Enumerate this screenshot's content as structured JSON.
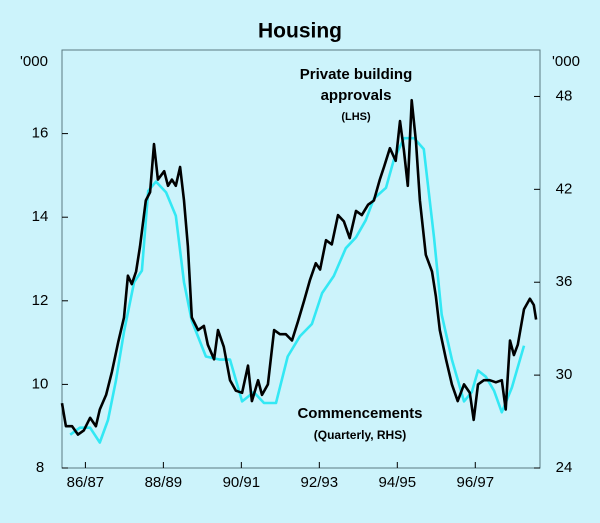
{
  "chart_data": {
    "type": "line",
    "title": "Housing",
    "y_label": "'000",
    "y2_label": "'000",
    "annotations": [
      "Private building",
      "approvals",
      "(LHS)",
      "Commencements",
      "(Quarterly, RHS)"
    ],
    "xlim": [
      1986.4,
      1998.66
    ],
    "xticks": [
      {
        "value": 1987,
        "label": "86/87"
      },
      {
        "value": 1989,
        "label": "88/89"
      },
      {
        "value": 1991,
        "label": "90/91"
      },
      {
        "value": 1993,
        "label": "92/93"
      },
      {
        "value": 1995,
        "label": "94/95"
      },
      {
        "value": 1997,
        "label": "96/97"
      }
    ],
    "ylim": [
      8,
      18
    ],
    "yticks": [
      8,
      10,
      12,
      14,
      16
    ],
    "y2lim": [
      24,
      51
    ],
    "y2ticks": [
      24,
      30,
      36,
      42,
      48
    ],
    "series": [
      {
        "name": "Private building approvals",
        "color": "#000000",
        "x": [
          1986.4,
          1986.5,
          1986.66,
          1986.81,
          1986.96,
          1987.12,
          1987.27,
          1987.37,
          1987.53,
          1987.68,
          1987.84,
          1987.99,
          1988.09,
          1988.19,
          1988.3,
          1988.4,
          1988.55,
          1988.66,
          1988.76,
          1988.86,
          1989.02,
          1989.12,
          1989.22,
          1989.32,
          1989.43,
          1989.53,
          1989.63,
          1989.73,
          1989.89,
          1990.04,
          1990.14,
          1990.3,
          1990.4,
          1990.55,
          1990.71,
          1990.86,
          1991.02,
          1991.17,
          1991.27,
          1991.43,
          1991.53,
          1991.68,
          1991.84,
          1991.99,
          1992.14,
          1992.3,
          1992.45,
          1992.61,
          1992.76,
          1992.91,
          1993.02,
          1993.17,
          1993.32,
          1993.48,
          1993.63,
          1993.78,
          1993.94,
          1994.09,
          1994.25,
          1994.4,
          1994.55,
          1994.66,
          1994.81,
          1994.96,
          1995.07,
          1995.17,
          1995.27,
          1995.37,
          1995.48,
          1995.58,
          1995.73,
          1995.89,
          1995.99,
          1996.09,
          1996.25,
          1996.4,
          1996.55,
          1996.71,
          1996.86,
          1996.96,
          1997.07,
          1997.22,
          1997.37,
          1997.53,
          1997.68,
          1997.78,
          1997.89,
          1997.99,
          1998.09,
          1998.25,
          1998.4,
          1998.5,
          1998.56
        ],
        "values": [
          9.55,
          9.0,
          9.0,
          8.8,
          8.9,
          9.2,
          9.0,
          9.4,
          9.75,
          10.3,
          11.0,
          11.6,
          12.6,
          12.4,
          12.7,
          13.3,
          14.4,
          14.6,
          15.75,
          14.9,
          15.1,
          14.75,
          14.9,
          14.75,
          15.2,
          14.4,
          13.3,
          11.6,
          11.3,
          11.4,
          10.95,
          10.6,
          11.3,
          10.9,
          10.1,
          9.85,
          9.8,
          10.45,
          9.6,
          10.1,
          9.75,
          10.0,
          11.3,
          11.2,
          11.2,
          11.05,
          11.5,
          12.0,
          12.5,
          12.9,
          12.75,
          13.45,
          13.35,
          14.05,
          13.9,
          13.5,
          14.15,
          14.05,
          14.3,
          14.4,
          14.9,
          15.2,
          15.65,
          15.35,
          16.3,
          15.6,
          14.75,
          16.8,
          15.8,
          14.4,
          13.1,
          12.7,
          12.1,
          11.3,
          10.6,
          10.0,
          9.6,
          10.0,
          9.8,
          9.15,
          10.0,
          10.1,
          10.1,
          10.05,
          10.1,
          9.4,
          11.05,
          10.7,
          10.95,
          11.8,
          12.05,
          11.9,
          11.55
        ]
      },
      {
        "name": "Commencements",
        "color": "#33e8f4",
        "axis": "y2",
        "x": [
          1986.61,
          1986.86,
          1987.12,
          1987.37,
          1987.58,
          1987.78,
          1987.99,
          1988.25,
          1988.45,
          1988.61,
          1988.81,
          1989.07,
          1989.32,
          1989.53,
          1989.73,
          1990.09,
          1990.45,
          1990.71,
          1991.02,
          1991.32,
          1991.58,
          1991.89,
          1992.19,
          1992.5,
          1992.81,
          1993.07,
          1993.37,
          1993.68,
          1993.94,
          1994.19,
          1994.4,
          1994.71,
          1994.91,
          1995.17,
          1995.43,
          1995.68,
          1995.94,
          1996.14,
          1996.4,
          1996.71,
          1996.91,
          1997.07,
          1997.27,
          1997.48,
          1997.68,
          1997.94,
          1998.25
        ],
        "values": [
          26.15,
          26.6,
          26.6,
          25.65,
          27.1,
          29.6,
          32.8,
          36.0,
          36.75,
          41.9,
          42.5,
          41.8,
          40.3,
          36.0,
          33.5,
          31.2,
          31.0,
          31.0,
          28.3,
          28.9,
          28.2,
          28.2,
          31.2,
          32.5,
          33.3,
          35.3,
          36.4,
          38.2,
          38.9,
          40.0,
          41.4,
          42.1,
          43.9,
          45.3,
          45.3,
          44.6,
          38.9,
          33.9,
          31.0,
          28.3,
          28.9,
          30.3,
          29.9,
          29.0,
          27.6,
          29.2,
          31.9
        ]
      }
    ]
  }
}
